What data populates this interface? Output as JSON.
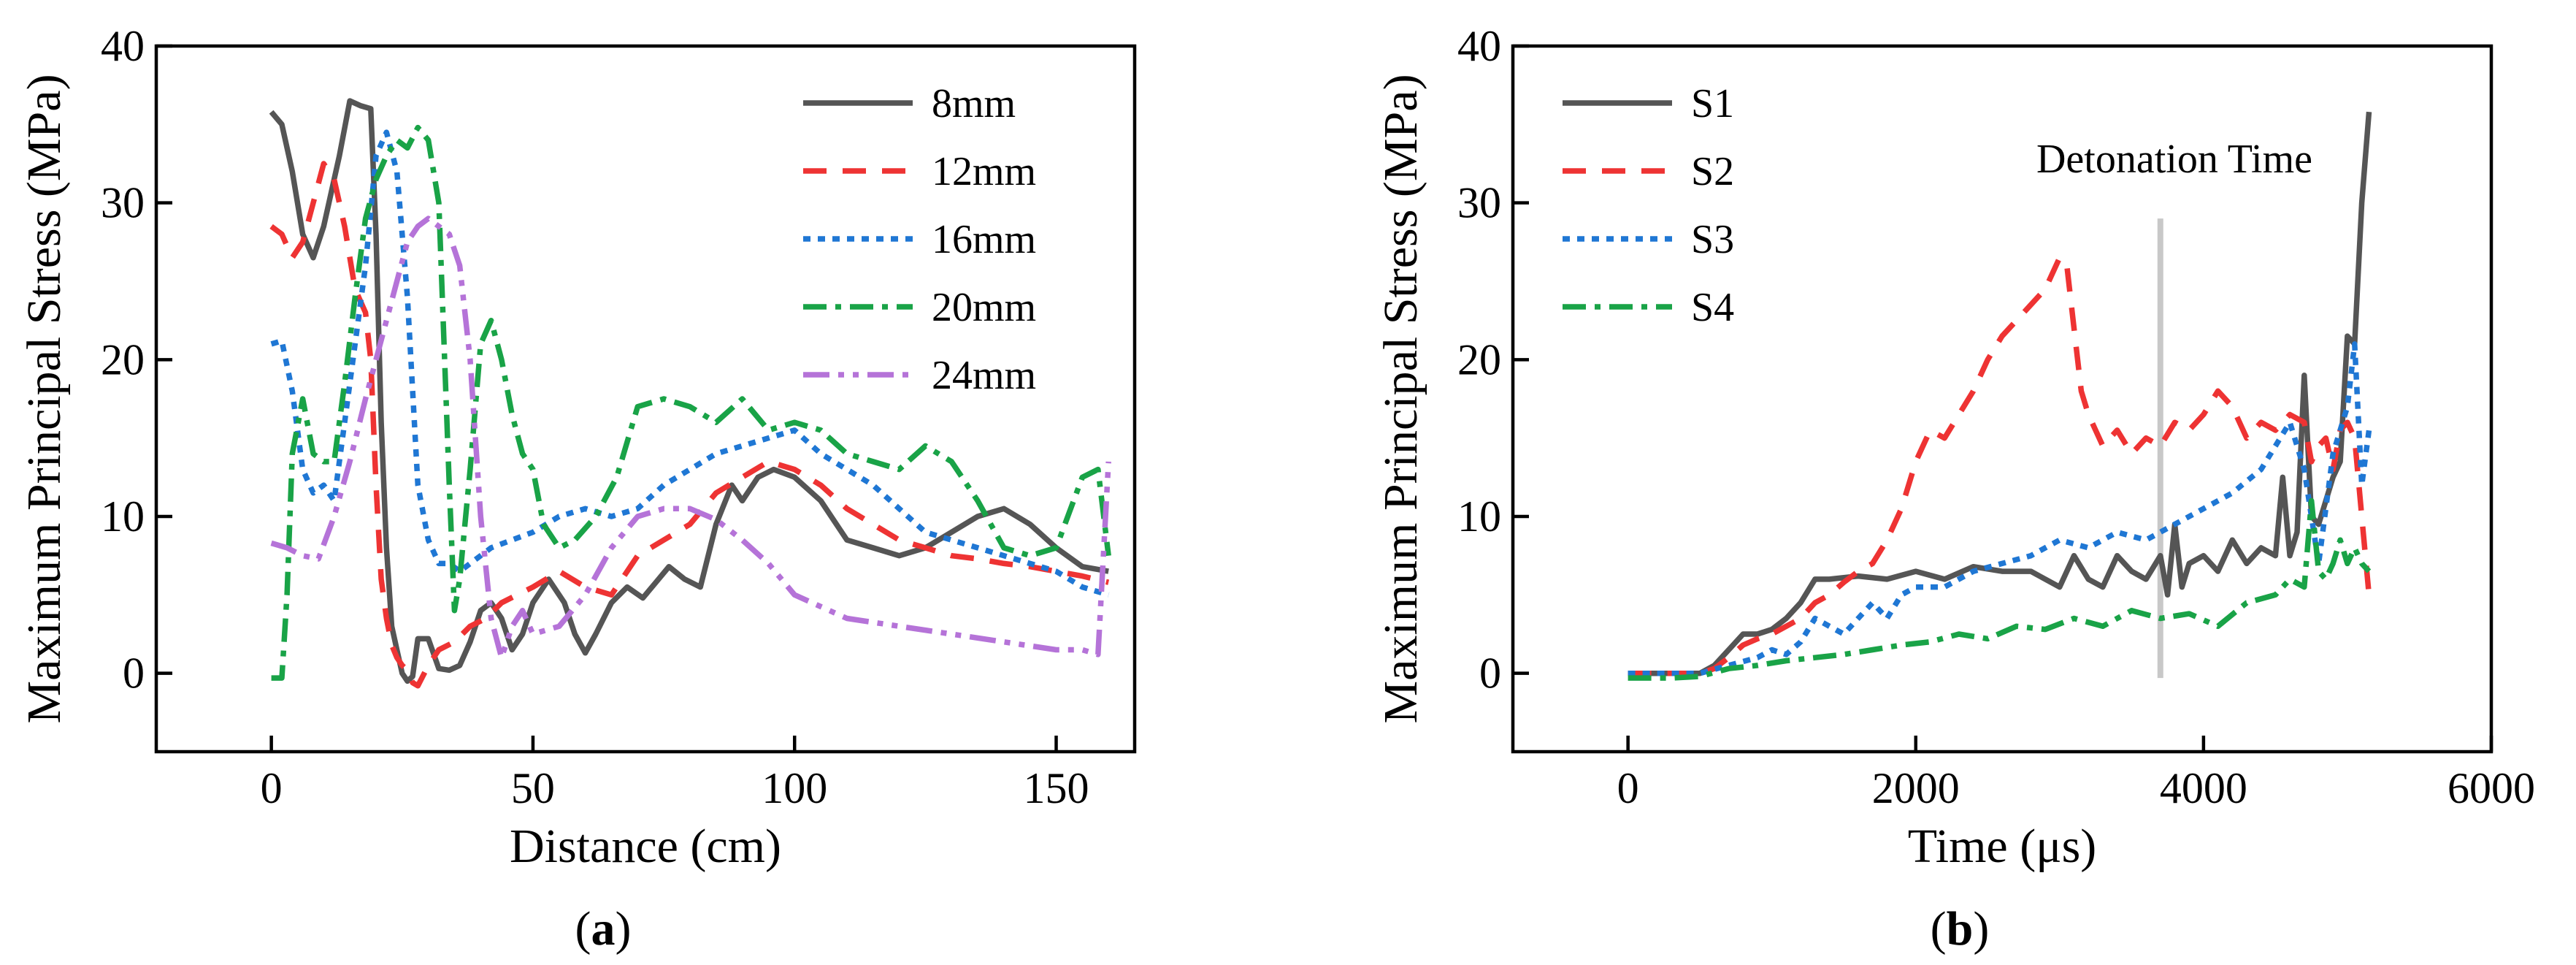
{
  "chart_data": [
    {
      "type": "line",
      "panel_label": "a",
      "title": "",
      "xlabel": "Distance (cm)",
      "ylabel": "Maximum Principal Stress (MPa)",
      "xlim": [
        -22,
        165
      ],
      "ylim": [
        -5,
        40
      ],
      "xticks": [
        0,
        50,
        100,
        150
      ],
      "yticks": [
        0,
        10,
        20,
        30,
        40
      ],
      "legend_position": "top-right",
      "series": [
        {
          "name": "8mm",
          "color": "#555555",
          "dash": "solid",
          "x": [
            0,
            2,
            4,
            6,
            8,
            10,
            13,
            15,
            17,
            19,
            20,
            21,
            22,
            23,
            24,
            25,
            26,
            27,
            28,
            29,
            30,
            32,
            34,
            36,
            38,
            40,
            42,
            44,
            46,
            48,
            50,
            53,
            56,
            58,
            60,
            62,
            65,
            68,
            71,
            74,
            76,
            79,
            82,
            85,
            88,
            90,
            93,
            96,
            100,
            105,
            110,
            115,
            120,
            125,
            130,
            135,
            140,
            145,
            150,
            155,
            160
          ],
          "y": [
            35.8,
            35.0,
            32.0,
            28.0,
            26.5,
            28.5,
            33.0,
            36.5,
            36.2,
            36.0,
            28.0,
            16.0,
            8.0,
            3.0,
            1.5,
            0.0,
            -0.5,
            -0.2,
            2.2,
            2.2,
            2.2,
            0.3,
            0.2,
            0.5,
            2.0,
            4.0,
            4.5,
            3.5,
            1.5,
            2.5,
            4.5,
            6.0,
            4.5,
            2.5,
            1.3,
            2.5,
            4.5,
            5.5,
            4.8,
            6.0,
            6.8,
            6.0,
            5.5,
            9.5,
            12.0,
            11.0,
            12.5,
            13.0,
            12.5,
            11.0,
            8.5,
            8.0,
            7.5,
            8.0,
            9.0,
            10.0,
            10.5,
            9.5,
            8.0,
            6.8,
            6.5
          ]
        },
        {
          "name": "12mm",
          "color": "#ee3333",
          "dash": "32 22",
          "x": [
            0,
            2,
            4,
            6,
            8,
            10,
            12,
            14,
            16,
            18,
            19,
            20,
            21,
            22,
            23,
            24,
            25,
            26,
            27,
            28,
            30,
            32,
            35,
            38,
            41,
            44,
            47,
            50,
            55,
            60,
            65,
            70,
            75,
            80,
            85,
            90,
            95,
            100,
            105,
            110,
            115,
            120,
            125,
            130,
            135,
            140,
            145,
            150,
            155,
            160
          ],
          "y": [
            28.5,
            28.0,
            26.5,
            27.5,
            30.0,
            32.5,
            31.5,
            28.5,
            24.5,
            23.0,
            20.0,
            12.0,
            6.0,
            3.5,
            1.8,
            1.0,
            0.5,
            0.2,
            -0.6,
            -0.8,
            0.5,
            1.5,
            2.0,
            3.0,
            3.5,
            4.5,
            5.0,
            5.5,
            6.5,
            5.5,
            5.0,
            7.5,
            8.5,
            9.5,
            11.5,
            12.5,
            13.5,
            13.0,
            12.0,
            10.5,
            9.5,
            8.5,
            8.0,
            7.5,
            7.3,
            7.0,
            6.8,
            6.5,
            6.2,
            5.8
          ]
        },
        {
          "name": "16mm",
          "color": "#1f77d4",
          "dash": "10 10",
          "x": [
            0,
            2,
            4,
            6,
            8,
            10,
            12,
            14,
            16,
            18,
            20,
            22,
            24,
            26,
            28,
            30,
            32,
            34,
            36,
            38,
            42,
            46,
            50,
            55,
            60,
            65,
            70,
            75,
            80,
            85,
            90,
            95,
            100,
            105,
            110,
            115,
            120,
            125,
            130,
            135,
            140,
            145,
            150,
            155,
            160
          ],
          "y": [
            21.0,
            21.2,
            18.0,
            13.0,
            11.5,
            12.0,
            11.0,
            16.0,
            21.0,
            26.0,
            33.0,
            34.5,
            32.0,
            24.0,
            12.0,
            8.5,
            7.0,
            7.0,
            6.5,
            7.0,
            8.0,
            8.5,
            9.0,
            10.0,
            10.5,
            10.0,
            10.5,
            12.0,
            13.0,
            14.0,
            14.5,
            15.0,
            15.5,
            14.0,
            13.0,
            12.0,
            10.5,
            9.0,
            8.5,
            8.0,
            7.5,
            7.0,
            6.5,
            5.5,
            5.0
          ]
        },
        {
          "name": "20mm",
          "color": "#19a347",
          "dash": "32 12 8 12",
          "x": [
            0,
            1,
            2,
            3,
            4,
            6,
            8,
            10,
            12,
            14,
            16,
            18,
            20,
            22,
            24,
            26,
            28,
            30,
            32,
            34,
            35,
            36,
            38,
            40,
            42,
            44,
            46,
            48,
            50,
            52,
            55,
            58,
            62,
            66,
            70,
            75,
            80,
            85,
            90,
            95,
            100,
            105,
            110,
            115,
            120,
            125,
            130,
            135,
            140,
            145,
            150,
            155,
            158,
            160
          ],
          "y": [
            -0.3,
            -0.3,
            -0.3,
            5.0,
            14.0,
            17.5,
            14.0,
            13.5,
            13.5,
            18.5,
            24.0,
            29.0,
            31.5,
            33.0,
            34.0,
            33.5,
            34.8,
            34.0,
            30.0,
            12.0,
            4.0,
            6.0,
            13.0,
            21.0,
            22.5,
            20.0,
            16.5,
            14.0,
            13.0,
            9.5,
            8.0,
            8.5,
            10.0,
            12.5,
            17.0,
            17.5,
            17.0,
            16.0,
            17.5,
            15.5,
            16.0,
            15.5,
            14.0,
            13.5,
            13.0,
            14.5,
            13.5,
            11.0,
            8.0,
            7.5,
            8.0,
            12.5,
            13.0,
            7.5
          ]
        },
        {
          "name": "24mm",
          "color": "#b573d8",
          "dash": "36 12 8 12 8 12",
          "x": [
            0,
            3,
            6,
            9,
            12,
            15,
            18,
            20,
            22,
            24,
            26,
            28,
            30,
            32,
            34,
            36,
            38,
            40,
            42,
            44,
            46,
            48,
            50,
            55,
            60,
            65,
            70,
            75,
            80,
            85,
            90,
            95,
            100,
            110,
            120,
            130,
            140,
            150,
            155,
            158,
            160
          ],
          "y": [
            8.3,
            8.0,
            7.5,
            7.3,
            10.0,
            13.5,
            17.5,
            20.0,
            22.5,
            25.0,
            27.5,
            28.5,
            29.0,
            28.5,
            28.0,
            26.0,
            20.0,
            10.0,
            3.5,
            1.0,
            3.0,
            4.0,
            2.5,
            3.0,
            5.0,
            8.0,
            10.0,
            10.5,
            10.5,
            9.8,
            8.5,
            7.0,
            5.0,
            3.5,
            3.0,
            2.5,
            2.0,
            1.5,
            1.5,
            1.2,
            13.5
          ]
        }
      ]
    },
    {
      "type": "line",
      "panel_label": "b",
      "title": "",
      "xlabel": "Time (μs)",
      "ylabel": "Maximum Principal Stress (MPa)",
      "xlim": [
        -800,
        6000
      ],
      "ylim": [
        -5,
        40
      ],
      "xticks": [
        0,
        2000,
        4000,
        6000
      ],
      "yticks": [
        0,
        10,
        20,
        30,
        40
      ],
      "legend_position": "top-left",
      "annotations": [
        {
          "text": "Detonation Time",
          "x": 3700
        }
      ],
      "series": [
        {
          "name": "S1",
          "color": "#555555",
          "dash": "solid",
          "x": [
            0,
            300,
            500,
            600,
            700,
            800,
            900,
            1000,
            1100,
            1200,
            1300,
            1400,
            1600,
            1800,
            2000,
            2200,
            2400,
            2600,
            2800,
            3000,
            3100,
            3200,
            3300,
            3400,
            3500,
            3600,
            3700,
            3750,
            3800,
            3850,
            3900,
            4000,
            4100,
            4200,
            4300,
            4400,
            4500,
            4550,
            4600,
            4650,
            4700,
            4750,
            4800,
            4850,
            4900,
            4950,
            5000,
            5050,
            5100,
            5150
          ],
          "y": [
            0,
            0,
            0,
            0.5,
            1.5,
            2.5,
            2.5,
            2.8,
            3.5,
            4.5,
            6.0,
            6.0,
            6.2,
            6.0,
            6.5,
            6.0,
            6.8,
            6.5,
            6.5,
            5.5,
            7.5,
            6.0,
            5.5,
            7.5,
            6.5,
            6.0,
            7.5,
            5.0,
            9.5,
            5.5,
            7.0,
            7.5,
            6.5,
            8.5,
            7.0,
            8.0,
            7.5,
            12.5,
            7.5,
            9.0,
            19.0,
            10.0,
            9.5,
            11.0,
            12.5,
            13.5,
            21.5,
            21.0,
            30.0,
            35.8
          ]
        },
        {
          "name": "S2",
          "color": "#ee3333",
          "dash": "32 22",
          "x": [
            0,
            300,
            500,
            600,
            700,
            800,
            900,
            1000,
            1100,
            1200,
            1300,
            1400,
            1500,
            1600,
            1700,
            1800,
            1900,
            2000,
            2100,
            2200,
            2300,
            2400,
            2500,
            2600,
            2700,
            2800,
            2900,
            3000,
            3050,
            3100,
            3150,
            3200,
            3300,
            3400,
            3500,
            3600,
            3700,
            3800,
            3900,
            4000,
            4100,
            4200,
            4300,
            4400,
            4500,
            4600,
            4700,
            4750,
            4800,
            4850,
            4900,
            4950,
            5000,
            5050,
            5100,
            5150
          ],
          "y": [
            0,
            0,
            0,
            0.3,
            1.0,
            1.8,
            2.2,
            2.5,
            3.0,
            3.5,
            4.5,
            5.0,
            5.8,
            6.5,
            7.0,
            8.5,
            10.5,
            13.5,
            15.5,
            15.0,
            16.5,
            18.0,
            20.0,
            21.5,
            22.5,
            23.5,
            24.5,
            26.5,
            26.0,
            22.0,
            18.0,
            16.5,
            14.5,
            15.5,
            14.0,
            15.0,
            14.5,
            16.0,
            15.5,
            16.5,
            18.0,
            17.0,
            15.0,
            16.0,
            15.5,
            16.5,
            16.0,
            13.5,
            14.5,
            15.0,
            13.0,
            15.5,
            16.0,
            15.0,
            10.0,
            5.0
          ]
        },
        {
          "name": "S3",
          "color": "#1f77d4",
          "dash": "10 10",
          "x": [
            0,
            300,
            500,
            700,
            900,
            1000,
            1100,
            1200,
            1300,
            1400,
            1500,
            1600,
            1700,
            1800,
            1900,
            2000,
            2200,
            2400,
            2600,
            2800,
            3000,
            3200,
            3400,
            3600,
            3800,
            4000,
            4200,
            4400,
            4500,
            4600,
            4700,
            4800,
            4900,
            5000,
            5050,
            5100,
            5150
          ],
          "y": [
            0,
            0,
            0,
            0.5,
            1.0,
            1.5,
            1.2,
            2.0,
            3.5,
            3.0,
            2.5,
            3.5,
            4.5,
            3.5,
            5.0,
            5.5,
            5.5,
            6.5,
            7.0,
            7.5,
            8.5,
            8.0,
            9.0,
            8.5,
            9.5,
            10.5,
            11.5,
            13.0,
            14.5,
            16.0,
            13.0,
            7.0,
            14.0,
            17.0,
            21.0,
            12.0,
            15.5
          ]
        },
        {
          "name": "S4",
          "color": "#19a347",
          "dash": "32 12 8 12",
          "x": [
            0,
            300,
            500,
            700,
            900,
            1100,
            1300,
            1500,
            1700,
            1900,
            2100,
            2300,
            2500,
            2700,
            2900,
            3100,
            3300,
            3500,
            3700,
            3900,
            4100,
            4300,
            4500,
            4600,
            4700,
            4750,
            4800,
            4850,
            4900,
            4950,
            5000,
            5050,
            5100,
            5150
          ],
          "y": [
            -0.3,
            -0.3,
            -0.2,
            0.3,
            0.5,
            0.8,
            1.0,
            1.2,
            1.5,
            1.8,
            2.0,
            2.5,
            2.2,
            3.0,
            2.8,
            3.5,
            3.0,
            4.0,
            3.5,
            3.8,
            3.0,
            4.5,
            5.0,
            6.0,
            5.5,
            11.0,
            6.5,
            6.0,
            7.0,
            8.5,
            7.0,
            8.0,
            7.0,
            6.5
          ]
        }
      ]
    }
  ]
}
